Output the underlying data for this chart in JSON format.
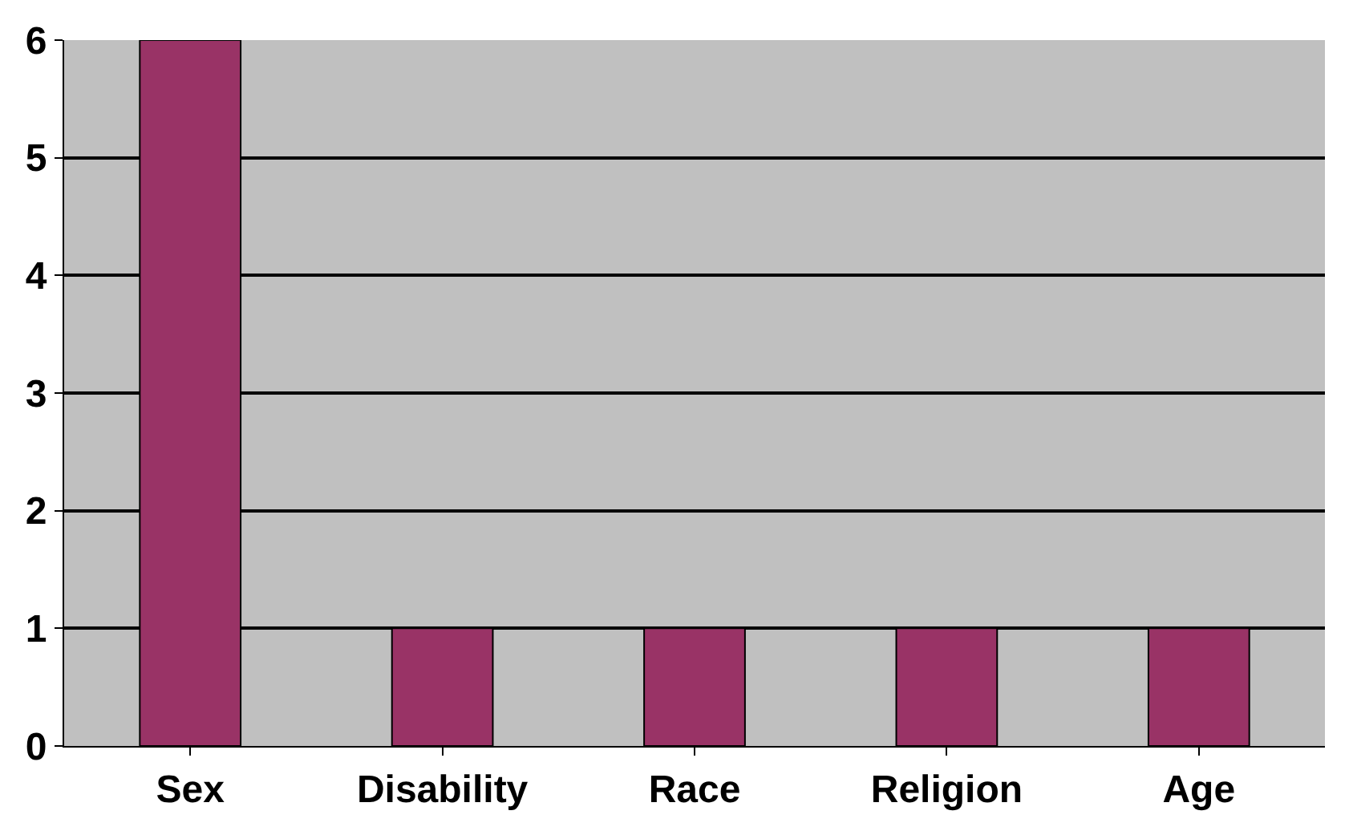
{
  "chart_data": {
    "type": "bar",
    "categories": [
      "Sex",
      "Disability",
      "Race",
      "Religion",
      "Age"
    ],
    "values": [
      6,
      1,
      1,
      1,
      1
    ],
    "color": "#993366",
    "ylim": [
      0,
      6
    ],
    "yticks": [
      0,
      1,
      2,
      3,
      4,
      5,
      6
    ],
    "grid": "y"
  }
}
